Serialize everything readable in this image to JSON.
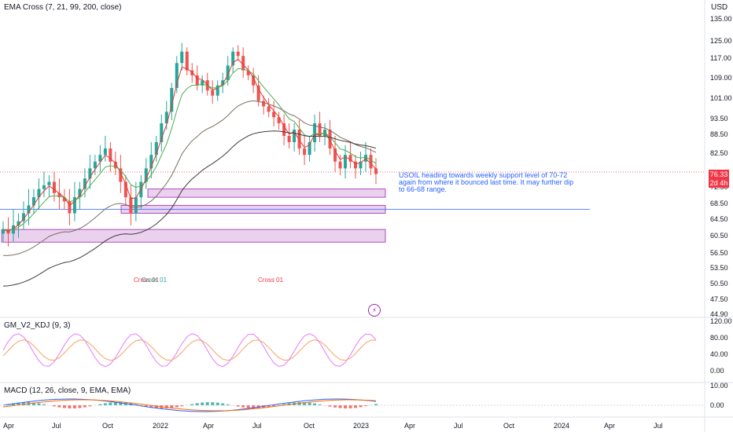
{
  "indicators": {
    "ema": "EMA Cross (7, 21, 99, 200, close)",
    "kdj": "GM_V2_KDJ (9, 3)",
    "macd": "MACD (12, 26, close, 9, EMA, EMA)"
  },
  "currency": "USD",
  "last_price": "76.33",
  "countdown": "2d 4h",
  "annotation": "USOIL heading towards weekly support level of 70-72 again from where it bounced last time. It may further dip to 66-68 range.",
  "cross_labels": [
    "Cross 01",
    "Cross 01"
  ],
  "cross_label_overlap": "Cross 01",
  "colors": {
    "up": "#26a69a",
    "down": "#ef5350",
    "ema7": "#e53935",
    "ema21": "#4caf50",
    "ema99": "#7a6f60",
    "ema200": "#3e3b3a",
    "zone": "#e1bee7",
    "zone_border": "#9c27b0",
    "k_line": "#e879f9",
    "d_line": "#f4a261"
  },
  "chart_data": {
    "type": "line",
    "price_axis": {
      "ticks": [
        "135.00",
        "125.00",
        "117.00",
        "109.00",
        "101.00",
        "93.50",
        "88.50",
        "82.50",
        "72.50",
        "68.50",
        "64.50",
        "60.50",
        "56.50",
        "53.50",
        "50.50",
        "47.50",
        "44.90"
      ]
    },
    "kdj_axis": {
      "ticks": [
        "120.00",
        "80.00",
        "40.00",
        "0.00"
      ]
    },
    "macd_axis": {
      "ticks": [
        "10.00",
        "0.00"
      ]
    },
    "time_axis": [
      "Apr",
      "Jul",
      "Oct",
      "2022",
      "Apr",
      "Jul",
      "Oct",
      "2023",
      "Apr",
      "Jul",
      "Oct",
      "2024",
      "Apr",
      "Jul"
    ],
    "close_series": [
      62,
      61,
      63,
      64,
      66,
      68,
      70,
      72,
      73,
      74,
      71,
      70,
      69,
      66,
      70,
      72,
      75,
      78,
      80,
      82,
      84,
      80,
      78,
      74,
      70,
      66,
      70,
      74,
      78,
      82,
      86,
      92,
      96,
      105,
      115,
      120,
      112,
      110,
      106,
      108,
      104,
      102,
      106,
      108,
      114,
      120,
      118,
      112,
      110,
      106,
      100,
      98,
      96,
      94,
      92,
      88,
      86,
      90,
      84,
      82,
      86,
      92,
      88,
      90,
      84,
      80,
      78,
      82,
      80,
      78,
      80,
      82,
      78,
      76.33
    ],
    "zones": [
      {
        "low": 70,
        "high": 72,
        "label": ""
      },
      {
        "low": 66,
        "high": 68,
        "label": ""
      },
      {
        "low": 59,
        "high": 62,
        "label": ""
      }
    ],
    "horizontal_line": 67
  }
}
